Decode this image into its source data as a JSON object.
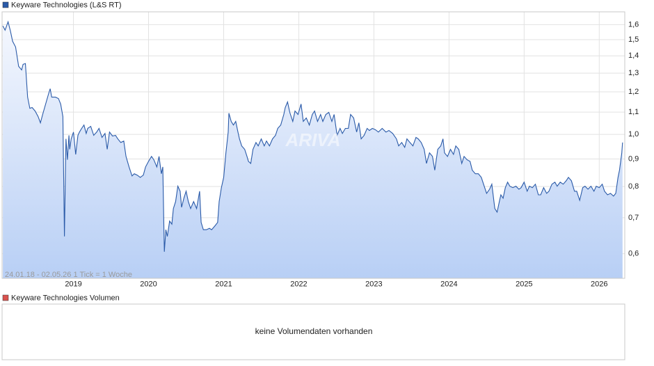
{
  "chart_data": {
    "type": "line",
    "log_y": true,
    "grid": true,
    "info": "24.01.18 - 02.05.26   1 Tick = 1 Woche",
    "watermark": "ARIVA",
    "xlim": [
      2018.05,
      2026.34
    ],
    "xticks": [
      2019,
      2020,
      2021,
      2022,
      2023,
      2024,
      2025,
      2026
    ],
    "ylim": [
      0.54,
      1.69
    ],
    "yticks": [
      {
        "value": 0.6,
        "label": "0,6"
      },
      {
        "value": 0.7,
        "label": "0,7"
      },
      {
        "value": 0.8,
        "label": "0,8"
      },
      {
        "value": 0.9,
        "label": "0,9"
      },
      {
        "value": 1.0,
        "label": "1,0"
      },
      {
        "value": 1.1,
        "label": "1,1"
      },
      {
        "value": 1.2,
        "label": "1,2"
      },
      {
        "value": 1.3,
        "label": "1,3"
      },
      {
        "value": 1.4,
        "label": "1,4"
      },
      {
        "value": 1.5,
        "label": "1,5"
      },
      {
        "value": 1.6,
        "label": "1,6"
      }
    ],
    "x": [
      2018.06,
      2018.09,
      2018.13,
      2018.16,
      2018.19,
      2018.23,
      2018.27,
      2018.31,
      2018.33,
      2018.36,
      2018.39,
      2018.42,
      2018.45,
      2018.49,
      2018.53,
      2018.56,
      2018.59,
      2018.63,
      2018.67,
      2018.69,
      2018.71,
      2018.76,
      2018.8,
      2018.83,
      2018.86,
      2018.88,
      2018.9,
      2018.92,
      2018.94,
      2018.95,
      2018.97,
      2019.0,
      2019.03,
      2019.06,
      2019.08,
      2019.11,
      2019.14,
      2019.17,
      2019.19,
      2019.23,
      2019.27,
      2019.31,
      2019.34,
      2019.38,
      2019.42,
      2019.45,
      2019.48,
      2019.52,
      2019.56,
      2019.59,
      2019.63,
      2019.67,
      2019.7,
      2019.74,
      2019.78,
      2019.81,
      2019.85,
      2019.89,
      2019.93,
      2019.96,
      2020.0,
      2020.04,
      2020.07,
      2020.11,
      2020.14,
      2020.17,
      2020.19,
      2020.21,
      2020.23,
      2020.25,
      2020.28,
      2020.31,
      2020.33,
      2020.36,
      2020.39,
      2020.42,
      2020.44,
      2020.47,
      2020.5,
      2020.53,
      2020.56,
      2020.6,
      2020.64,
      2020.68,
      2020.7,
      2020.73,
      2020.77,
      2020.81,
      2020.84,
      2020.88,
      2020.92,
      2020.94,
      2020.97,
      2021.0,
      2021.03,
      2021.06,
      2021.07,
      2021.1,
      2021.13,
      2021.16,
      2021.19,
      2021.21,
      2021.24,
      2021.28,
      2021.31,
      2021.33,
      2021.36,
      2021.39,
      2021.43,
      2021.46,
      2021.5,
      2021.54,
      2021.57,
      2021.61,
      2021.65,
      2021.69,
      2021.72,
      2021.76,
      2021.8,
      2021.82,
      2021.85,
      2021.88,
      2021.92,
      2021.95,
      2021.99,
      2022.03,
      2022.06,
      2022.1,
      2022.14,
      2022.18,
      2022.21,
      2022.25,
      2022.29,
      2022.32,
      2022.36,
      2022.4,
      2022.44,
      2022.47,
      2022.51,
      2022.55,
      2022.58,
      2022.62,
      2022.66,
      2022.69,
      2022.73,
      2022.77,
      2022.8,
      2022.83,
      2022.87,
      2022.91,
      2022.94,
      2022.98,
      2023.02,
      2023.06,
      2023.11,
      2023.16,
      2023.2,
      2023.25,
      2023.3,
      2023.33,
      2023.37,
      2023.41,
      2023.44,
      2023.48,
      2023.52,
      2023.56,
      2023.59,
      2023.63,
      2023.67,
      2023.7,
      2023.74,
      2023.78,
      2023.81,
      2023.85,
      2023.89,
      2023.92,
      2023.94,
      2023.98,
      2024.02,
      2024.06,
      2024.09,
      2024.13,
      2024.17,
      2024.2,
      2024.24,
      2024.28,
      2024.31,
      2024.35,
      2024.39,
      2024.43,
      2024.46,
      2024.5,
      2024.54,
      2024.57,
      2024.61,
      2024.64,
      2024.67,
      2024.69,
      2024.72,
      2024.75,
      2024.78,
      2024.81,
      2024.85,
      2024.89,
      2024.93,
      2024.96,
      2025.0,
      2025.04,
      2025.07,
      2025.11,
      2025.15,
      2025.19,
      2025.22,
      2025.26,
      2025.3,
      2025.33,
      2025.37,
      2025.41,
      2025.44,
      2025.48,
      2025.52,
      2025.56,
      2025.59,
      2025.63,
      2025.67,
      2025.7,
      2025.74,
      2025.78,
      2025.81,
      2025.85,
      2025.89,
      2025.93,
      2025.96,
      2026.0,
      2026.04,
      2026.07,
      2026.11,
      2026.15,
      2026.19,
      2026.22,
      2026.25,
      2026.27,
      2026.3,
      2026.31
    ],
    "series": [
      {
        "name": "Keyware Technologies (L&S RT)",
        "color": "#2a5aa8",
        "values": [
          1.591,
          1.562,
          1.619,
          1.558,
          1.49,
          1.454,
          1.338,
          1.318,
          1.35,
          1.354,
          1.173,
          1.118,
          1.122,
          1.105,
          1.079,
          1.051,
          1.089,
          1.139,
          1.191,
          1.216,
          1.173,
          1.173,
          1.166,
          1.139,
          1.079,
          0.646,
          0.981,
          0.897,
          0.996,
          0.938,
          0.981,
          1.01,
          0.918,
          0.996,
          1.01,
          1.026,
          1.041,
          1.004,
          1.026,
          1.035,
          0.996,
          1.01,
          1.026,
          0.987,
          1.004,
          0.938,
          1.01,
          0.993,
          0.996,
          0.981,
          0.966,
          0.972,
          0.91,
          0.87,
          0.837,
          0.845,
          0.84,
          0.832,
          0.84,
          0.87,
          0.891,
          0.91,
          0.897,
          0.87,
          0.91,
          0.845,
          0.87,
          0.605,
          0.665,
          0.646,
          0.69,
          0.681,
          0.728,
          0.75,
          0.801,
          0.784,
          0.732,
          0.761,
          0.784,
          0.75,
          0.728,
          0.75,
          0.728,
          0.784,
          0.686,
          0.665,
          0.665,
          0.669,
          0.665,
          0.675,
          0.686,
          0.75,
          0.796,
          0.832,
          0.924,
          1.01,
          1.095,
          1.057,
          1.041,
          1.057,
          1.01,
          0.981,
          0.952,
          0.938,
          0.91,
          0.891,
          0.883,
          0.938,
          0.966,
          0.952,
          0.981,
          0.952,
          0.972,
          0.952,
          0.981,
          0.996,
          1.026,
          1.041,
          1.089,
          1.122,
          1.149,
          1.099,
          1.057,
          1.105,
          1.089,
          1.139,
          1.057,
          1.073,
          1.041,
          1.089,
          1.105,
          1.057,
          1.089,
          1.057,
          1.089,
          1.099,
          1.057,
          1.089,
          0.996,
          1.026,
          1.004,
          1.026,
          1.026,
          1.089,
          1.073,
          1.01,
          1.051,
          0.981,
          0.996,
          1.026,
          1.017,
          1.026,
          1.02,
          1.01,
          1.026,
          1.01,
          1.017,
          1.004,
          0.981,
          0.952,
          0.966,
          0.946,
          0.981,
          0.966,
          0.952,
          0.987,
          0.981,
          0.966,
          0.938,
          0.883,
          0.924,
          0.91,
          0.858,
          0.938,
          0.952,
          0.981,
          0.924,
          0.91,
          0.938,
          0.918,
          0.952,
          0.938,
          0.883,
          0.91,
          0.897,
          0.891,
          0.858,
          0.845,
          0.845,
          0.832,
          0.808,
          0.777,
          0.791,
          0.808,
          0.728,
          0.717,
          0.75,
          0.772,
          0.761,
          0.796,
          0.815,
          0.801,
          0.796,
          0.801,
          0.791,
          0.796,
          0.815,
          0.784,
          0.801,
          0.796,
          0.808,
          0.772,
          0.772,
          0.796,
          0.777,
          0.784,
          0.808,
          0.815,
          0.801,
          0.815,
          0.808,
          0.82,
          0.832,
          0.82,
          0.784,
          0.784,
          0.754,
          0.796,
          0.801,
          0.791,
          0.801,
          0.784,
          0.801,
          0.796,
          0.808,
          0.784,
          0.772,
          0.777,
          0.768,
          0.777,
          0.832,
          0.858,
          0.924,
          0.966
        ]
      }
    ]
  },
  "volume_panel": {
    "legend": "Keyware Technologies Volumen",
    "color": "#d9534f",
    "message": "keine Volumendaten vorhanden"
  }
}
